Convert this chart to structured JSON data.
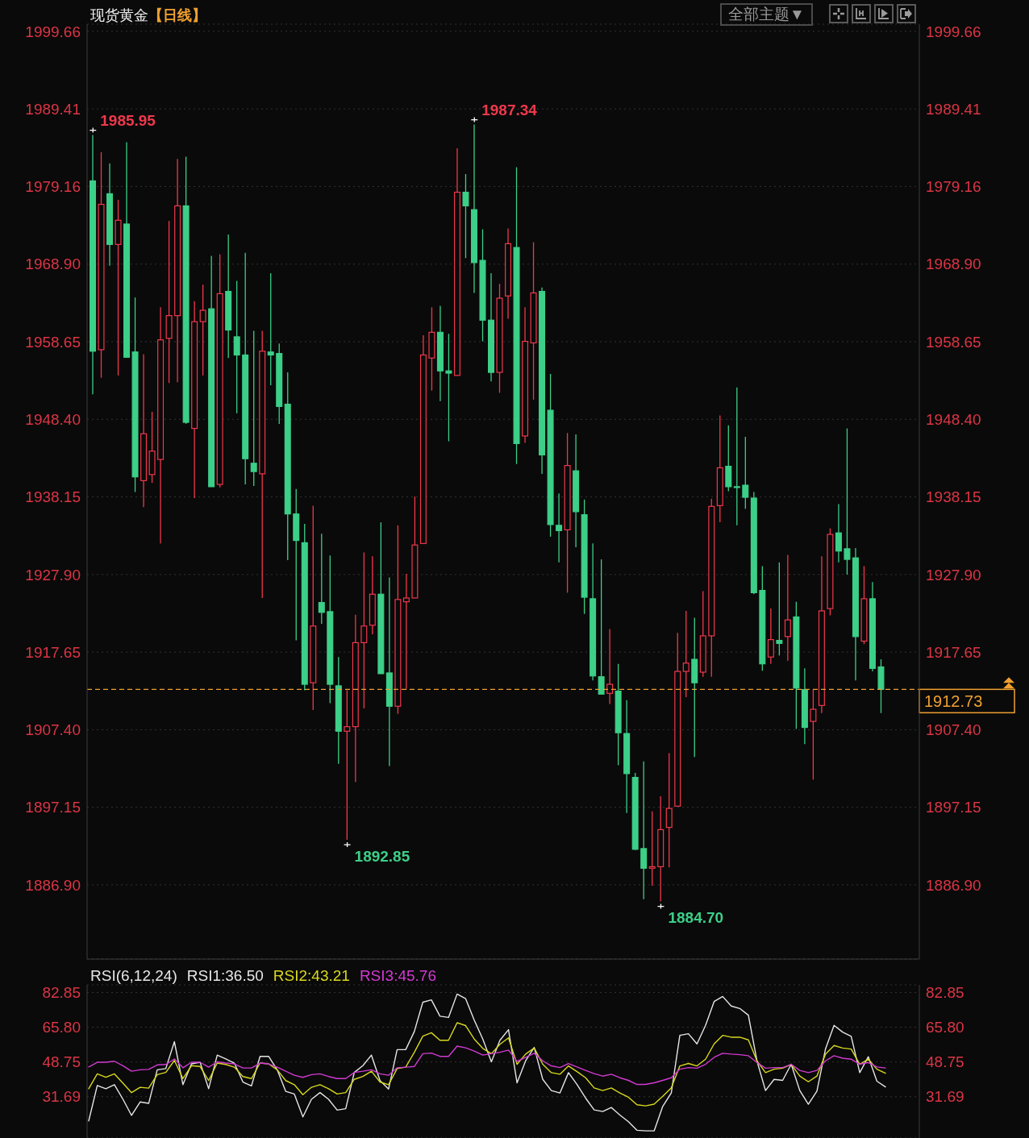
{
  "chart_data": [
    {
      "type": "candlestick",
      "title": "现货黄金",
      "subtitle": "【日线】",
      "categories": [
        null,
        null,
        null,
        null,
        null,
        null,
        null,
        null,
        null,
        null,
        null,
        null,
        null,
        null,
        null,
        null,
        null,
        null,
        null,
        null,
        null,
        null,
        null,
        null,
        null,
        null,
        null,
        null,
        null,
        null,
        null,
        null,
        null,
        null,
        null,
        null,
        null,
        null,
        null,
        null,
        null,
        null,
        null,
        null,
        null,
        null,
        null,
        null,
        null,
        null,
        null,
        null,
        null,
        null,
        null,
        null,
        null,
        null,
        null,
        null,
        null,
        null,
        null,
        null,
        null,
        null,
        null,
        null,
        null,
        null,
        null,
        null,
        null,
        null,
        null,
        null,
        null,
        null,
        null,
        null,
        null,
        null,
        null,
        null,
        null,
        null,
        null,
        null,
        null,
        null,
        null,
        null,
        null,
        null
      ],
      "ohlc": [
        [
          1979.9,
          1985.95,
          1951.7,
          1957.4
        ],
        [
          1957.6,
          1983.7,
          1953.9,
          1976.8
        ],
        [
          1978.2,
          1982.2,
          1968.7,
          1971.5
        ],
        [
          1971.5,
          1977.4,
          1954.2,
          1974.7
        ],
        [
          1974.2,
          1985.0,
          1956.6,
          1956.6
        ],
        [
          1957.3,
          1964.5,
          1938.8,
          1940.8
        ],
        [
          1940.3,
          1957.0,
          1936.8,
          1946.5
        ],
        [
          1941.1,
          1949.4,
          1940.0,
          1944.2
        ],
        [
          1943.1,
          1963.2,
          1932.0,
          1958.9
        ],
        [
          1959.1,
          1974.6,
          1953.2,
          1962.1
        ],
        [
          1962.1,
          1982.8,
          1953.3,
          1976.6
        ],
        [
          1976.6,
          1983.1,
          1947.8,
          1948.0
        ],
        [
          1947.2,
          1964.0,
          1938.0,
          1961.3
        ],
        [
          1961.3,
          1966.2,
          1954.2,
          1962.8
        ],
        [
          1963.0,
          1970.0,
          1939.5,
          1939.5
        ],
        [
          1939.8,
          1970.2,
          1939.4,
          1965.0
        ],
        [
          1965.3,
          1972.8,
          1956.5,
          1960.2
        ],
        [
          1959.3,
          1966.7,
          1949.2,
          1956.9
        ],
        [
          1956.9,
          1970.4,
          1939.8,
          1943.2
        ],
        [
          1942.6,
          1960.1,
          1939.6,
          1941.5
        ],
        [
          1941.2,
          1960.1,
          1924.8,
          1957.4
        ],
        [
          1957.3,
          1967.7,
          1952.9,
          1956.9
        ],
        [
          1957.1,
          1958.4,
          1947.8,
          1950.1
        ],
        [
          1950.4,
          1954.6,
          1929.8,
          1935.9
        ],
        [
          1935.9,
          1939.2,
          1919.2,
          1932.4
        ],
        [
          1932.1,
          1934.6,
          1912.6,
          1913.4
        ],
        [
          1913.6,
          1937.0,
          1910.0,
          1921.1
        ],
        [
          1924.2,
          1933.3,
          1921.4,
          1922.9
        ],
        [
          1923.0,
          1930.4,
          1910.9,
          1913.4
        ],
        [
          1913.2,
          1917.0,
          1902.9,
          1907.2
        ],
        [
          1907.2,
          1912.6,
          1892.85,
          1907.8
        ],
        [
          1907.8,
          1922.6,
          1900.5,
          1918.9
        ],
        [
          1918.9,
          1930.8,
          1910.2,
          1921.1
        ],
        [
          1921.2,
          1930.3,
          1920.0,
          1925.3
        ],
        [
          1925.3,
          1934.8,
          1914.8,
          1914.8
        ],
        [
          1914.9,
          1927.5,
          1902.6,
          1910.5
        ],
        [
          1910.5,
          1934.4,
          1909.5,
          1924.6
        ],
        [
          1924.3,
          1928.0,
          1912.8,
          1924.8
        ],
        [
          1924.8,
          1938.2,
          1924.8,
          1931.8
        ],
        [
          1932.0,
          1959.5,
          1932.0,
          1956.9
        ],
        [
          1956.5,
          1963.2,
          1952.2,
          1959.9
        ],
        [
          1959.9,
          1963.4,
          1950.8,
          1954.8
        ],
        [
          1954.8,
          1959.7,
          1945.5,
          1954.5
        ],
        [
          1954.2,
          1984.2,
          1954.2,
          1978.4
        ],
        [
          1978.4,
          1980.8,
          1969.7,
          1976.6
        ],
        [
          1976.1,
          1987.34,
          1965.1,
          1969.1
        ],
        [
          1969.4,
          1973.5,
          1958.7,
          1961.5
        ],
        [
          1961.5,
          1967.7,
          1953.4,
          1954.6
        ],
        [
          1954.6,
          1966.3,
          1951.9,
          1964.4
        ],
        [
          1964.7,
          1973.6,
          1961.7,
          1971.6
        ],
        [
          1971.1,
          1981.7,
          1942.5,
          1945.2
        ],
        [
          1946.2,
          1963.2,
          1945.3,
          1958.7
        ],
        [
          1958.5,
          1971.8,
          1951.0,
          1965.1
        ],
        [
          1965.3,
          1965.8,
          1941.2,
          1943.7
        ],
        [
          1949.6,
          1954.4,
          1932.9,
          1934.5
        ],
        [
          1934.4,
          1938.6,
          1929.5,
          1933.7
        ],
        [
          1933.8,
          1946.6,
          1925.5,
          1942.3
        ],
        [
          1941.6,
          1946.4,
          1931.5,
          1936.2
        ],
        [
          1935.8,
          1937.8,
          1922.7,
          1924.9
        ],
        [
          1924.7,
          1932.0,
          1913.9,
          1914.5
        ],
        [
          1914.4,
          1929.9,
          1912.1,
          1912.1
        ],
        [
          1912.2,
          1920.7,
          1910.8,
          1913.4
        ],
        [
          1912.5,
          1916.1,
          1902.7,
          1907.0
        ],
        [
          1906.9,
          1911.3,
          1896.4,
          1901.6
        ],
        [
          1901.1,
          1901.7,
          1891.5,
          1891.6
        ],
        [
          1891.7,
          1903.2,
          1885.0,
          1889.1
        ],
        [
          1889.1,
          1896.6,
          1886.8,
          1889.3
        ],
        [
          1889.3,
          1898.6,
          1884.7,
          1894.2
        ],
        [
          1894.5,
          1904.3,
          1889.2,
          1897.0
        ],
        [
          1897.3,
          1920.2,
          1897.3,
          1915.1
        ],
        [
          1915.1,
          1923.1,
          1911.7,
          1916.2
        ],
        [
          1916.7,
          1922.2,
          1903.8,
          1913.6
        ],
        [
          1915.0,
          1925.7,
          1914.4,
          1919.8
        ],
        [
          1919.8,
          1937.9,
          1914.4,
          1936.9
        ],
        [
          1937.0,
          1948.9,
          1934.8,
          1942.0
        ],
        [
          1942.2,
          1947.6,
          1938.9,
          1939.5
        ],
        [
          1939.5,
          1952.6,
          1934.4,
          1939.4
        ],
        [
          1939.7,
          1946.1,
          1936.6,
          1938.1
        ],
        [
          1938.0,
          1938.8,
          1925.3,
          1925.5
        ],
        [
          1925.8,
          1929.0,
          1915.2,
          1916.1
        ],
        [
          1917.0,
          1923.4,
          1916.1,
          1919.3
        ],
        [
          1919.2,
          1929.5,
          1917.2,
          1918.8
        ],
        [
          1919.7,
          1930.5,
          1916.5,
          1921.9
        ],
        [
          1922.3,
          1924.3,
          1907.5,
          1912.9
        ],
        [
          1912.7,
          1915.5,
          1905.5,
          1907.7
        ],
        [
          1908.5,
          1912.7,
          1900.8,
          1910.1
        ],
        [
          1910.6,
          1930.3,
          1909.6,
          1923.1
        ],
        [
          1923.4,
          1934.0,
          1922.5,
          1933.2
        ],
        [
          1933.4,
          1937.2,
          1929.5,
          1931.0
        ],
        [
          1931.3,
          1947.2,
          1927.9,
          1929.9
        ],
        [
          1930.1,
          1931.4,
          1913.9,
          1919.7
        ],
        [
          1919.1,
          1929.0,
          1918.7,
          1924.7
        ],
        [
          1924.7,
          1926.9,
          1915.1,
          1915.5
        ],
        [
          1915.7,
          1916.7,
          1909.6,
          1912.73
        ]
      ],
      "colors": [
        "#3ccf88",
        "#f0384c",
        "#3ccf88",
        "#f0384c",
        "#3ccf88",
        "#3ccf88",
        "#f0384c",
        "#f0384c",
        "#f0384c",
        "#f0384c",
        "#f0384c",
        "#3ccf88",
        "#f0384c",
        "#f0384c",
        "#3ccf88",
        "#f0384c",
        "#3ccf88",
        "#3ccf88",
        "#3ccf88",
        "#3ccf88",
        "#f0384c",
        "#3ccf88",
        "#3ccf88",
        "#3ccf88",
        "#3ccf88",
        "#3ccf88",
        "#f0384c",
        "#3ccf88",
        "#3ccf88",
        "#3ccf88",
        "#f0384c",
        "#f0384c",
        "#f0384c",
        "#f0384c",
        "#3ccf88",
        "#3ccf88",
        "#f0384c",
        "#f0384c",
        "#f0384c",
        "#f0384c",
        "#f0384c",
        "#3ccf88",
        "#3ccf88",
        "#f0384c",
        "#3ccf88",
        "#3ccf88",
        "#3ccf88",
        "#3ccf88",
        "#f0384c",
        "#f0384c",
        "#3ccf88",
        "#f0384c",
        "#f0384c",
        "#3ccf88",
        "#3ccf88",
        "#3ccf88",
        "#f0384c",
        "#3ccf88",
        "#3ccf88",
        "#3ccf88",
        "#3ccf88",
        "#f0384c",
        "#3ccf88",
        "#3ccf88",
        "#3ccf88",
        "#3ccf88",
        "#f0384c",
        "#f0384c",
        "#f0384c",
        "#f0384c",
        "#f0384c",
        "#3ccf88",
        "#f0384c",
        "#f0384c",
        "#f0384c",
        "#3ccf88",
        "#3ccf88",
        "#3ccf88",
        "#3ccf88",
        "#3ccf88",
        "#f0384c",
        "#3ccf88",
        "#f0384c",
        "#3ccf88",
        "#3ccf88",
        "#f0384c",
        "#f0384c",
        "#f0384c",
        "#3ccf88",
        "#3ccf88",
        "#3ccf88",
        "#f0384c",
        "#3ccf88",
        "#3ccf88"
      ],
      "ylim": [
        1877.1,
        2000.6
      ],
      "yticks": [
        1999.66,
        1989.41,
        1979.16,
        {
          "value": 1968.9,
          "label": "1968.90"
        },
        1958.65,
        {
          "value": 1948.4,
          "label": "1948.40"
        },
        1938.15,
        {
          "value": 1927.9,
          "label": "1927.90"
        },
        1917.65,
        {
          "value": 1907.4,
          "label": "1907.40"
        },
        1897.15,
        {
          "value": 1886.9,
          "label": "1886.90"
        }
      ],
      "y2lim": [
        1877.1,
        2000.6
      ],
      "y2ticks": [
        1999.66,
        1989.41,
        1979.16,
        {
          "value": 1968.9,
          "label": "1968.90"
        },
        1958.65,
        {
          "value": 1948.4,
          "label": "1948.40"
        },
        1938.15,
        {
          "value": 1927.9,
          "label": "1927.90"
        },
        1917.65,
        {
          "value": 1907.4,
          "label": "1907.40"
        },
        1897.15,
        {
          "value": 1886.9,
          "label": "1886.90"
        }
      ],
      "grid": "y",
      "tick_labels": "y",
      "ref_lines": [
        {
          "axis": "y",
          "value": 1912.73,
          "label": "1912.73",
          "color": "#f0a030",
          "line_style": "dashed"
        }
      ],
      "annotations": [
        "全部主题▼",
        "1985.95",
        "1987.34",
        "1892.85",
        "1884.70"
      ]
    },
    {
      "type": "line",
      "legend_title": "RSI(6,12,24)",
      "legend": "top left",
      "categories": [
        null,
        null,
        null,
        null,
        null,
        null,
        null,
        null,
        null,
        null,
        null,
        null,
        null,
        null,
        null,
        null,
        null,
        null,
        null,
        null,
        null,
        null,
        null,
        null,
        null,
        null,
        null,
        null,
        null,
        null,
        null,
        null,
        null,
        null,
        null,
        null,
        null,
        null,
        null,
        null,
        null,
        null,
        null,
        null,
        null,
        null,
        null,
        null,
        null,
        null,
        null,
        null,
        null,
        null,
        null,
        null,
        null,
        null,
        null,
        null,
        null,
        null,
        null,
        null,
        null,
        null,
        null,
        null,
        null,
        null,
        null,
        null,
        null,
        null,
        null,
        null,
        null,
        null,
        null,
        null,
        null,
        null,
        null,
        null,
        null,
        null,
        null,
        null,
        null,
        null,
        null,
        null,
        null,
        null
      ],
      "series": [
        {
          "name": "RSI1:36.50",
          "color": "#e6e6e6",
          "values": [
            19.8,
            37.2,
            35.6,
            37.6,
            30.4,
            22.5,
            29.1,
            28.4,
            44.9,
            45.5,
            58.7,
            37.6,
            47.8,
            48.6,
            35.6,
            52.1,
            50.2,
            48.2,
            38.9,
            37.0,
            51.5,
            51.5,
            44.9,
            34.3,
            33.0,
            21.8,
            30.4,
            33.7,
            30.4,
            25.1,
            25.8,
            43.6,
            46.9,
            52.1,
            39.6,
            35.4,
            54.8,
            54.8,
            63.6,
            78.1,
            79.2,
            71.2,
            70.6,
            82.1,
            79.8,
            69.3,
            60.0,
            48.8,
            59.4,
            64.6,
            38.5,
            49.3,
            55.9,
            40.2,
            34.7,
            33.5,
            43.5,
            37.7,
            31.0,
            25.2,
            24.4,
            26.4,
            22.7,
            19.4,
            15.2,
            14.9,
            14.9,
            26.9,
            33.5,
            61.8,
            62.6,
            57.6,
            66.7,
            78.4,
            80.9,
            76.2,
            75.0,
            71.7,
            49.3,
            34.7,
            40.2,
            39.7,
            47.6,
            34.7,
            28.0,
            34.4,
            55.1,
            66.7,
            63.4,
            61.3,
            43.5,
            51.3,
            39.3,
            36.5
          ]
        },
        {
          "name": "RSI2:43.21",
          "color": "#d8d81e",
          "values": [
            35.6,
            42.9,
            41.2,
            42.9,
            38.3,
            33.7,
            36.3,
            35.9,
            42.5,
            43.6,
            49.5,
            40.6,
            46.9,
            46.5,
            39.6,
            48.2,
            47.5,
            46.2,
            41.6,
            40.6,
            48.2,
            47.8,
            44.9,
            39.6,
            37.6,
            32.7,
            36.3,
            37.6,
            35.6,
            33.0,
            33.7,
            40.2,
            41.6,
            44.2,
            38.9,
            37.6,
            45.5,
            46.2,
            53.4,
            61.4,
            63.1,
            59.4,
            59.4,
            68.0,
            66.6,
            60.0,
            55.4,
            52.8,
            57.4,
            60.6,
            47.6,
            52.6,
            55.6,
            47.6,
            43.5,
            42.7,
            46.8,
            44.0,
            41.0,
            36.0,
            34.7,
            36.0,
            33.5,
            31.4,
            27.7,
            27.2,
            28.0,
            31.9,
            36.0,
            46.8,
            48.0,
            46.8,
            50.1,
            57.6,
            61.8,
            60.9,
            60.9,
            59.6,
            49.3,
            43.5,
            45.2,
            45.7,
            47.6,
            41.8,
            39.0,
            41.8,
            52.6,
            56.8,
            55.6,
            55.1,
            47.6,
            50.1,
            45.2,
            43.2
          ]
        },
        {
          "name": "RSI3:45.76",
          "color": "#d23ad2",
          "values": [
            46.3,
            48.6,
            48.6,
            49.1,
            46.9,
            44.2,
            44.9,
            45.1,
            47.3,
            47.5,
            50.2,
            45.9,
            48.6,
            48.6,
            46.2,
            48.8,
            48.2,
            47.8,
            45.8,
            45.8,
            48.2,
            47.8,
            46.2,
            44.2,
            42.2,
            41.2,
            42.5,
            42.9,
            41.6,
            40.6,
            40.6,
            43.6,
            44.2,
            44.9,
            42.9,
            42.2,
            45.9,
            46.2,
            46.5,
            52.8,
            53.1,
            51.5,
            51.5,
            56.5,
            55.7,
            54.1,
            52.1,
            52.8,
            53.5,
            54.6,
            49.0,
            51.0,
            53.0,
            49.3,
            46.8,
            46.0,
            48.0,
            46.3,
            44.6,
            43.0,
            41.8,
            42.7,
            41.0,
            39.7,
            37.7,
            37.7,
            38.5,
            39.7,
            41.0,
            45.2,
            46.0,
            45.7,
            47.6,
            51.0,
            53.0,
            52.6,
            52.3,
            51.8,
            48.5,
            45.7,
            46.0,
            46.0,
            47.6,
            44.6,
            43.5,
            44.6,
            49.3,
            51.8,
            50.6,
            50.1,
            47.6,
            48.5,
            46.3,
            45.8
          ]
        }
      ],
      "ylim": [
        11.4,
        86.6
      ],
      "yticks": [
        82.85,
        {
          "value": 65.8,
          "label": "65.80"
        },
        48.75,
        31.69
      ],
      "y2lim": [
        11.4,
        86.6
      ],
      "y2ticks": [
        82.85,
        {
          "value": 65.8,
          "label": "65.80"
        },
        48.75,
        31.69
      ],
      "grid": "y",
      "tick_labels": "y"
    }
  ]
}
